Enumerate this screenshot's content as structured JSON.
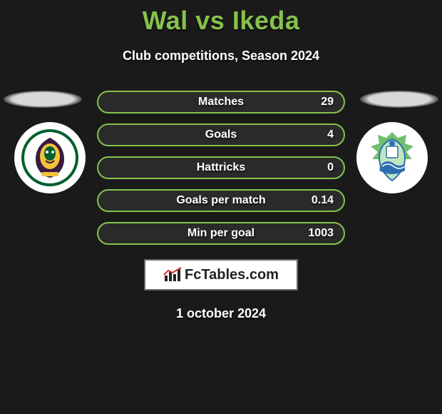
{
  "title_color": "#86c24c",
  "title": "Wal vs Ikeda",
  "subtitle": "Club competitions, Season 2024",
  "stat_row": {
    "border_color": "#86c24c",
    "bg_color": "#2a2a2a"
  },
  "stats": [
    {
      "label": "Matches",
      "value": "29"
    },
    {
      "label": "Goals",
      "value": "4"
    },
    {
      "label": "Hattricks",
      "value": "0"
    },
    {
      "label": "Goals per match",
      "value": "0.14"
    },
    {
      "label": "Min per goal",
      "value": "1003"
    }
  ],
  "brand": "FcTables.com",
  "date": "1 october 2024",
  "left_team": {
    "name": "Tokyo Verdy",
    "crest_bg": "#ffffff",
    "crest_primary": "#005f2f",
    "crest_accent": "#f3c33c",
    "crest_dark": "#3b1a3f"
  },
  "right_team": {
    "name": "Shonan Bellmare",
    "crest_bg": "#ffffff",
    "crest_primary": "#6fc06f",
    "crest_accent": "#2f6db3",
    "crest_light": "#bfe6bf"
  }
}
